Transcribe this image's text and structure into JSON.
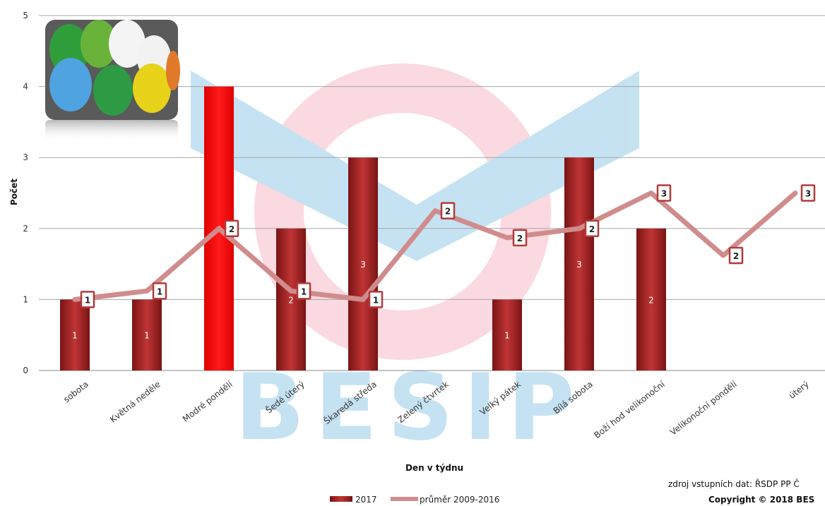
{
  "chart_data": {
    "type": "bar",
    "categories": [
      "sobota",
      "Květná neděle",
      "Modré pondělí",
      "Šedé úterý",
      "Škaredá středa",
      "Zelený čtvrtek",
      "Velký pátek",
      "Bílá sobota",
      "Boží hod velikonoční",
      "Velikonoční pondělí",
      "úterý"
    ],
    "series": [
      {
        "name": "2017",
        "chart_type": "bar",
        "values": [
          1,
          1,
          4,
          2,
          3,
          null,
          1,
          3,
          2,
          null,
          null
        ],
        "value_labels": [
          "1",
          "1",
          "4",
          "2",
          "3",
          "",
          "1",
          "3",
          "2",
          "",
          ""
        ],
        "highlight_index": 2,
        "color": "#b52a2a",
        "highlight_color": "#ff0000"
      },
      {
        "name": "průměr 2009-2016",
        "chart_type": "line",
        "values": [
          1.0,
          1.12,
          2.0,
          1.12,
          1.0,
          2.25,
          1.87,
          2.0,
          2.5,
          1.62,
          2.5
        ],
        "value_labels": [
          "1",
          "1",
          "2",
          "1",
          "1",
          "2",
          "2",
          "2",
          "3",
          "2",
          "3"
        ],
        "color": "#d08c8c"
      }
    ],
    "ylabel": "Počet",
    "xlabel": "Den v týdnu",
    "ylim": [
      0,
      5
    ],
    "yticks": [
      "0",
      "1",
      "2",
      "3",
      "4",
      "5"
    ],
    "grid": true,
    "legend_position": "bottom"
  },
  "footer": {
    "source": "zdroj vstupních dat: ŘSDP PP Č",
    "copyright": "Copyright © 2018 BES"
  },
  "watermark_text": "BESIP",
  "decor_image": "easter-eggs-photo"
}
